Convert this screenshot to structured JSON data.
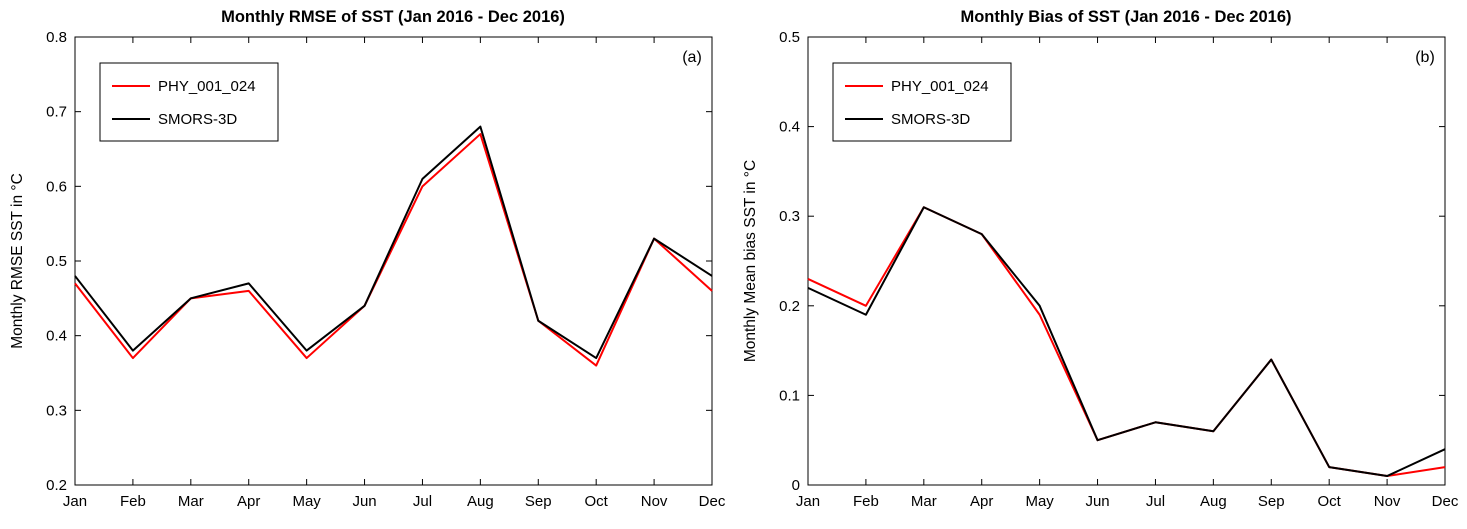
{
  "figure": {
    "background": "#ffffff",
    "axis_color": "#000000"
  },
  "chart_data": [
    {
      "type": "line",
      "title": "Monthly RMSE of SST (Jan 2016 - Dec 2016)",
      "panel_label": "(a)",
      "xlabel": "",
      "ylabel": "Monthly RMSE SST in °C",
      "ylim": [
        0.2,
        0.8
      ],
      "yticks": [
        0.2,
        0.3,
        0.4,
        0.5,
        0.6,
        0.7,
        0.8
      ],
      "ytick_labels": [
        "0.2",
        "0.3",
        "0.4",
        "0.5",
        "0.6",
        "0.7",
        "0.8"
      ],
      "categories": [
        "Jan",
        "Feb",
        "Mar",
        "Apr",
        "May",
        "Jun",
        "Jul",
        "Aug",
        "Sep",
        "Oct",
        "Nov",
        "Dec"
      ],
      "grid": false,
      "legend_position": "top-left",
      "series": [
        {
          "name": "PHY_001_024",
          "color": "#ff0000",
          "values": [
            0.47,
            0.37,
            0.45,
            0.46,
            0.37,
            0.44,
            0.6,
            0.67,
            0.42,
            0.36,
            0.53,
            0.46
          ]
        },
        {
          "name": "SMORS-3D",
          "color": "#000000",
          "values": [
            0.48,
            0.38,
            0.45,
            0.47,
            0.38,
            0.44,
            0.61,
            0.68,
            0.42,
            0.37,
            0.53,
            0.48
          ]
        }
      ]
    },
    {
      "type": "line",
      "title": "Monthly Bias of SST (Jan 2016 - Dec 2016)",
      "panel_label": "(b)",
      "xlabel": "",
      "ylabel": "Monthly Mean bias SST in °C",
      "ylim": [
        0,
        0.5
      ],
      "yticks": [
        0,
        0.1,
        0.2,
        0.3,
        0.4,
        0.5
      ],
      "ytick_labels": [
        "0",
        "0.1",
        "0.2",
        "0.3",
        "0.4",
        "0.5"
      ],
      "categories": [
        "Jan",
        "Feb",
        "Mar",
        "Apr",
        "May",
        "Jun",
        "Jul",
        "Aug",
        "Sep",
        "Oct",
        "Nov",
        "Dec"
      ],
      "grid": false,
      "legend_position": "top-left",
      "series": [
        {
          "name": "PHY_001_024",
          "color": "#ff0000",
          "values": [
            0.23,
            0.2,
            0.31,
            0.28,
            0.19,
            0.05,
            0.07,
            0.06,
            0.14,
            0.02,
            0.01,
            0.02
          ]
        },
        {
          "name": "SMORS-3D",
          "color": "#000000",
          "values": [
            0.22,
            0.19,
            0.31,
            0.28,
            0.2,
            0.05,
            0.07,
            0.06,
            0.14,
            0.02,
            0.01,
            0.04
          ]
        }
      ]
    }
  ]
}
